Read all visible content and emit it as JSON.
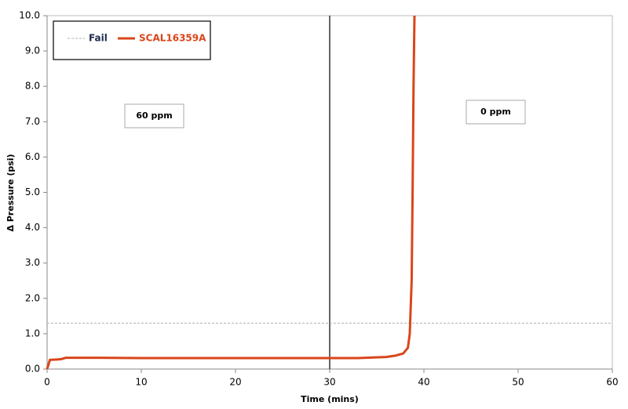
{
  "chart_data": {
    "type": "line",
    "xlabel": "Time (mins)",
    "ylabel": "Δ Pressure (psi)",
    "xlim": [
      0,
      60
    ],
    "xticks": [
      0,
      10,
      20,
      30,
      40,
      50,
      60
    ],
    "ylim": [
      0,
      10
    ],
    "yticks": [
      {
        "value": 0,
        "label": "0.0"
      },
      {
        "value": 1,
        "label": "1.0"
      },
      {
        "value": 2,
        "label": "2.0"
      },
      {
        "value": 3,
        "label": "3.0"
      },
      {
        "value": 4,
        "label": "4.0"
      },
      {
        "value": 5,
        "label": "5.0"
      },
      {
        "value": 6,
        "label": "6.0"
      },
      {
        "value": 7,
        "label": "7.0"
      },
      {
        "value": 8,
        "label": "8.0"
      },
      {
        "value": 9,
        "label": "9.0"
      },
      {
        "value": 10,
        "label": "10.0"
      }
    ],
    "vlines": [
      30
    ],
    "annotations": [
      "60 ppm",
      "0 ppm"
    ],
    "series": [
      {
        "name": "Fail",
        "color": "#b0b0b0",
        "dashed": true,
        "x": [
          0,
          60
        ],
        "values": [
          1.3,
          1.3
        ]
      },
      {
        "name": "SCAL16359A",
        "color": "#d9461a",
        "dashed": false,
        "x": [
          0,
          0.3,
          1,
          1.5,
          2,
          5,
          10,
          20,
          30,
          33,
          36,
          37,
          37.8,
          38.3,
          38.5,
          38.7,
          38.8,
          38.9,
          39
        ],
        "values": [
          0,
          0.26,
          0.27,
          0.28,
          0.32,
          0.32,
          0.31,
          0.31,
          0.31,
          0.31,
          0.34,
          0.38,
          0.44,
          0.6,
          1.0,
          2.5,
          5,
          8,
          10
        ]
      }
    ]
  }
}
